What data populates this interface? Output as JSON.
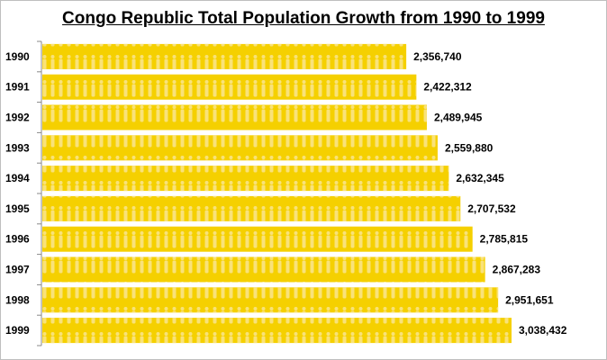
{
  "chart_data": {
    "type": "bar",
    "orientation": "horizontal",
    "title": "Congo Republic Total Population Growth from 1990 to 1999",
    "categories": [
      "1990",
      "1991",
      "1992",
      "1993",
      "1994",
      "1995",
      "1996",
      "1997",
      "1998",
      "1999"
    ],
    "values": [
      2356740,
      2422312,
      2489945,
      2559880,
      2632345,
      2707532,
      2785815,
      2867283,
      2951651,
      3038432
    ],
    "data_labels": [
      "2,356,740",
      "2,422,312",
      "2,489,945",
      "2,559,880",
      "2,632,345",
      "2,707,532",
      "2,785,815",
      "2,867,283",
      "2,951,651",
      "3,038,432"
    ],
    "xlim": [
      0,
      3038432
    ],
    "grid": false,
    "legend": "none",
    "colors": {
      "bar": "#F5D000",
      "pattern": "#F9E27A"
    }
  }
}
